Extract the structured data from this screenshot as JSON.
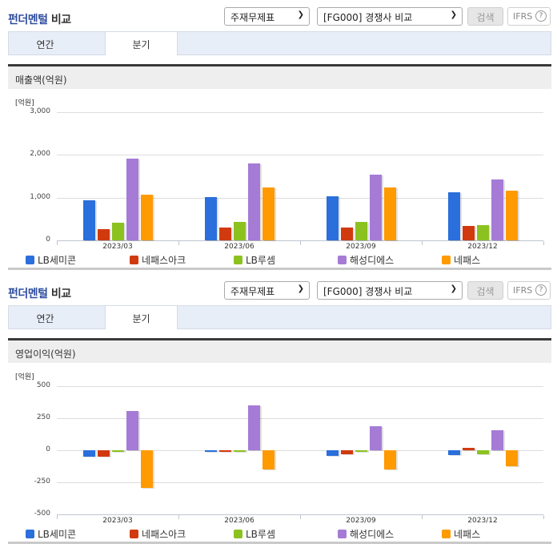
{
  "sections": [
    {
      "header": {
        "title_blue": "펀더멘털",
        "title_dark": " 비교",
        "select_statement": "주재무제표",
        "select_group": "[FG000] 경쟁사 비교",
        "search_label": "검색",
        "ifrs_label": "IFRS",
        "help_icon": "?"
      },
      "tabs": [
        {
          "label": "연간",
          "active": false
        },
        {
          "label": "분기",
          "active": true
        }
      ],
      "chart_title": "매출액(억원)",
      "unit_label": "[억원]"
    },
    {
      "header": {
        "title_blue": "펀더멘털",
        "title_dark": " 비교",
        "select_statement": "주재무제표",
        "select_group": "[FG000] 경쟁사 비교",
        "search_label": "검색",
        "ifrs_label": "IFRS",
        "help_icon": "?"
      },
      "tabs": [
        {
          "label": "연간",
          "active": false
        },
        {
          "label": "분기",
          "active": true
        }
      ],
      "chart_title": "영업이익(억원)",
      "unit_label": "[억원]"
    }
  ],
  "legend": [
    {
      "name": "LB세미콘",
      "color": "#2a6fdb"
    },
    {
      "name": "네패스아크",
      "color": "#d13a0f"
    },
    {
      "name": "LB루셈",
      "color": "#8cc21f"
    },
    {
      "name": "해성디에스",
      "color": "#a57bd6"
    },
    {
      "name": "네패스",
      "color": "#ff9a00"
    }
  ],
  "chart_data": [
    {
      "type": "bar",
      "title": "매출액(억원)",
      "ylabel": "[억원]",
      "xlabel": "",
      "categories": [
        "2023/03",
        "2023/06",
        "2023/09",
        "2023/12"
      ],
      "yticks": [
        "3,000",
        "2,000",
        "1,000",
        "0"
      ],
      "ylim": [
        0,
        3000
      ],
      "grid": true,
      "legend_position": "bottom",
      "series": [
        {
          "name": "LB세미콘",
          "color": "#2a6fdb",
          "values": [
            940,
            1020,
            1030,
            1130
          ]
        },
        {
          "name": "네패스아크",
          "color": "#d13a0f",
          "values": [
            265,
            300,
            300,
            340
          ]
        },
        {
          "name": "LB루셈",
          "color": "#8cc21f",
          "values": [
            410,
            430,
            440,
            360
          ]
        },
        {
          "name": "해성디에스",
          "color": "#a57bd6",
          "values": [
            1915,
            1800,
            1540,
            1430
          ]
        },
        {
          "name": "네패스",
          "color": "#ff9a00",
          "values": [
            1070,
            1240,
            1240,
            1170
          ]
        }
      ]
    },
    {
      "type": "bar",
      "title": "영업이익(억원)",
      "ylabel": "[억원]",
      "xlabel": "",
      "categories": [
        "2023/03",
        "2023/06",
        "2023/09",
        "2023/12"
      ],
      "yticks": [
        "500",
        "250",
        "0",
        "-250",
        "-500"
      ],
      "ylim": [
        -500,
        500
      ],
      "grid": true,
      "legend_position": "bottom",
      "series": [
        {
          "name": "LB세미콘",
          "color": "#2a6fdb",
          "values": [
            -48,
            -5,
            -46,
            -35
          ]
        },
        {
          "name": "네패스아크",
          "color": "#d13a0f",
          "values": [
            -48,
            -15,
            -30,
            17
          ]
        },
        {
          "name": "LB루셈",
          "color": "#8cc21f",
          "values": [
            -12,
            -6,
            -5,
            -30
          ]
        },
        {
          "name": "해성디에스",
          "color": "#a57bd6",
          "values": [
            309,
            352,
            190,
            157
          ]
        },
        {
          "name": "네패스",
          "color": "#ff9a00",
          "values": [
            -292,
            -150,
            -150,
            -126
          ]
        }
      ]
    }
  ]
}
